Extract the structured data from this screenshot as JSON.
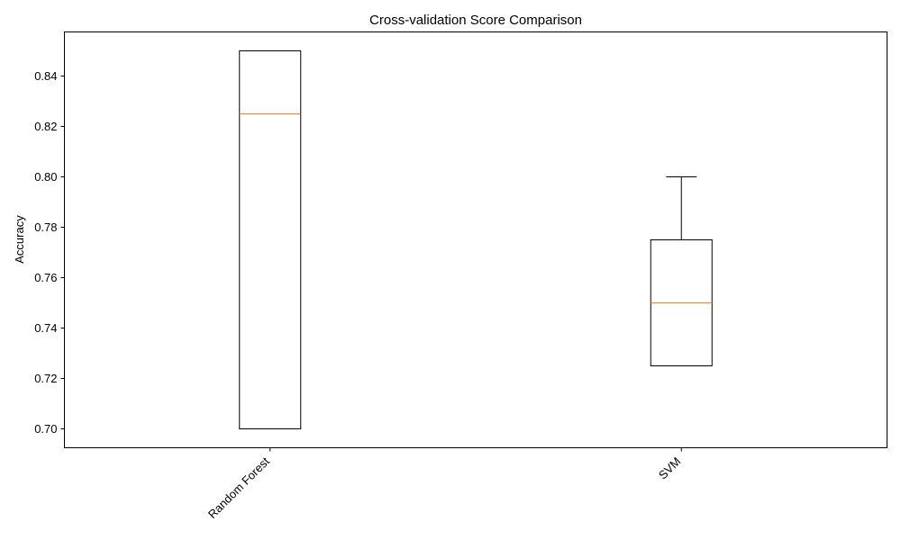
{
  "chart_data": {
    "type": "box",
    "title": "Cross-validation Score Comparison",
    "xlabel": "",
    "ylabel": "Accuracy",
    "ylim": [
      0.6925,
      0.8575
    ],
    "yticks": [
      0.7,
      0.72,
      0.74,
      0.76,
      0.78,
      0.8,
      0.82,
      0.84
    ],
    "ytick_labels": [
      "0.70",
      "0.72",
      "0.74",
      "0.76",
      "0.78",
      "0.80",
      "0.82",
      "0.84"
    ],
    "categories": [
      "Random Forest",
      "SVM"
    ],
    "boxes": [
      {
        "category": "Random Forest",
        "whisker_low": 0.7,
        "q1": 0.7,
        "median": 0.825,
        "q3": 0.85,
        "whisker_high": 0.85
      },
      {
        "category": "SVM",
        "whisker_low": 0.725,
        "q1": 0.725,
        "median": 0.75,
        "q3": 0.775,
        "whisker_high": 0.8
      }
    ],
    "grid": false,
    "legend": "none",
    "colors": {
      "box": "#000000",
      "median": "#ff7f0e",
      "axis": "#000000"
    }
  }
}
